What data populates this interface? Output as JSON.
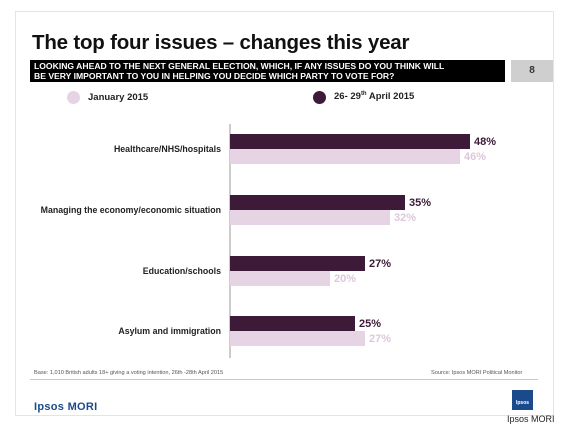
{
  "title": "The top four issues – changes this year",
  "question": {
    "line1": "LOOKING AHEAD TO THE NEXT GENERAL ELECTION, WHICH, IF ANY ISSUES DO YOU THINK WILL",
    "line2": "BE VERY IMPORTANT TO YOU IN HELPING YOU DECIDE WHICH PARTY TO VOTE FOR?"
  },
  "page_number": "8",
  "legend": {
    "jan": "January 2015",
    "apr_prefix": "26- 29",
    "apr_sup": "th",
    "apr_suffix": " April 2015"
  },
  "footer": {
    "base": "Base: 1,010 British adults 18+ giving a voting intention, 26th -28th April 2015",
    "source": "Source: Ipsos MORI Political Monitor"
  },
  "brand": "Ipsos MORI",
  "logo_text": "Ipsos",
  "credit": "Ipsos MORI",
  "colors": {
    "april": "#3d1a38",
    "january": "#e6d4e4",
    "april_label": "#3d1a38",
    "january_label": "#dcc8da"
  },
  "chart_data": {
    "type": "bar",
    "orientation": "horizontal",
    "categories": [
      "Healthcare/NHS/hospitals",
      "Managing the economy/economic situation",
      "Education/schools",
      "Asylum and immigration"
    ],
    "series": [
      {
        "name": "26- 29th April 2015",
        "values": [
          48,
          35,
          27,
          25
        ],
        "labels": [
          "48%",
          "35%",
          "27%",
          "25%"
        ]
      },
      {
        "name": "January 2015",
        "values": [
          46,
          32,
          20,
          27
        ],
        "labels": [
          "46%",
          "32%",
          "20%",
          "27%"
        ]
      }
    ],
    "xlim": [
      0,
      100
    ],
    "grid": false,
    "legend": "top"
  }
}
